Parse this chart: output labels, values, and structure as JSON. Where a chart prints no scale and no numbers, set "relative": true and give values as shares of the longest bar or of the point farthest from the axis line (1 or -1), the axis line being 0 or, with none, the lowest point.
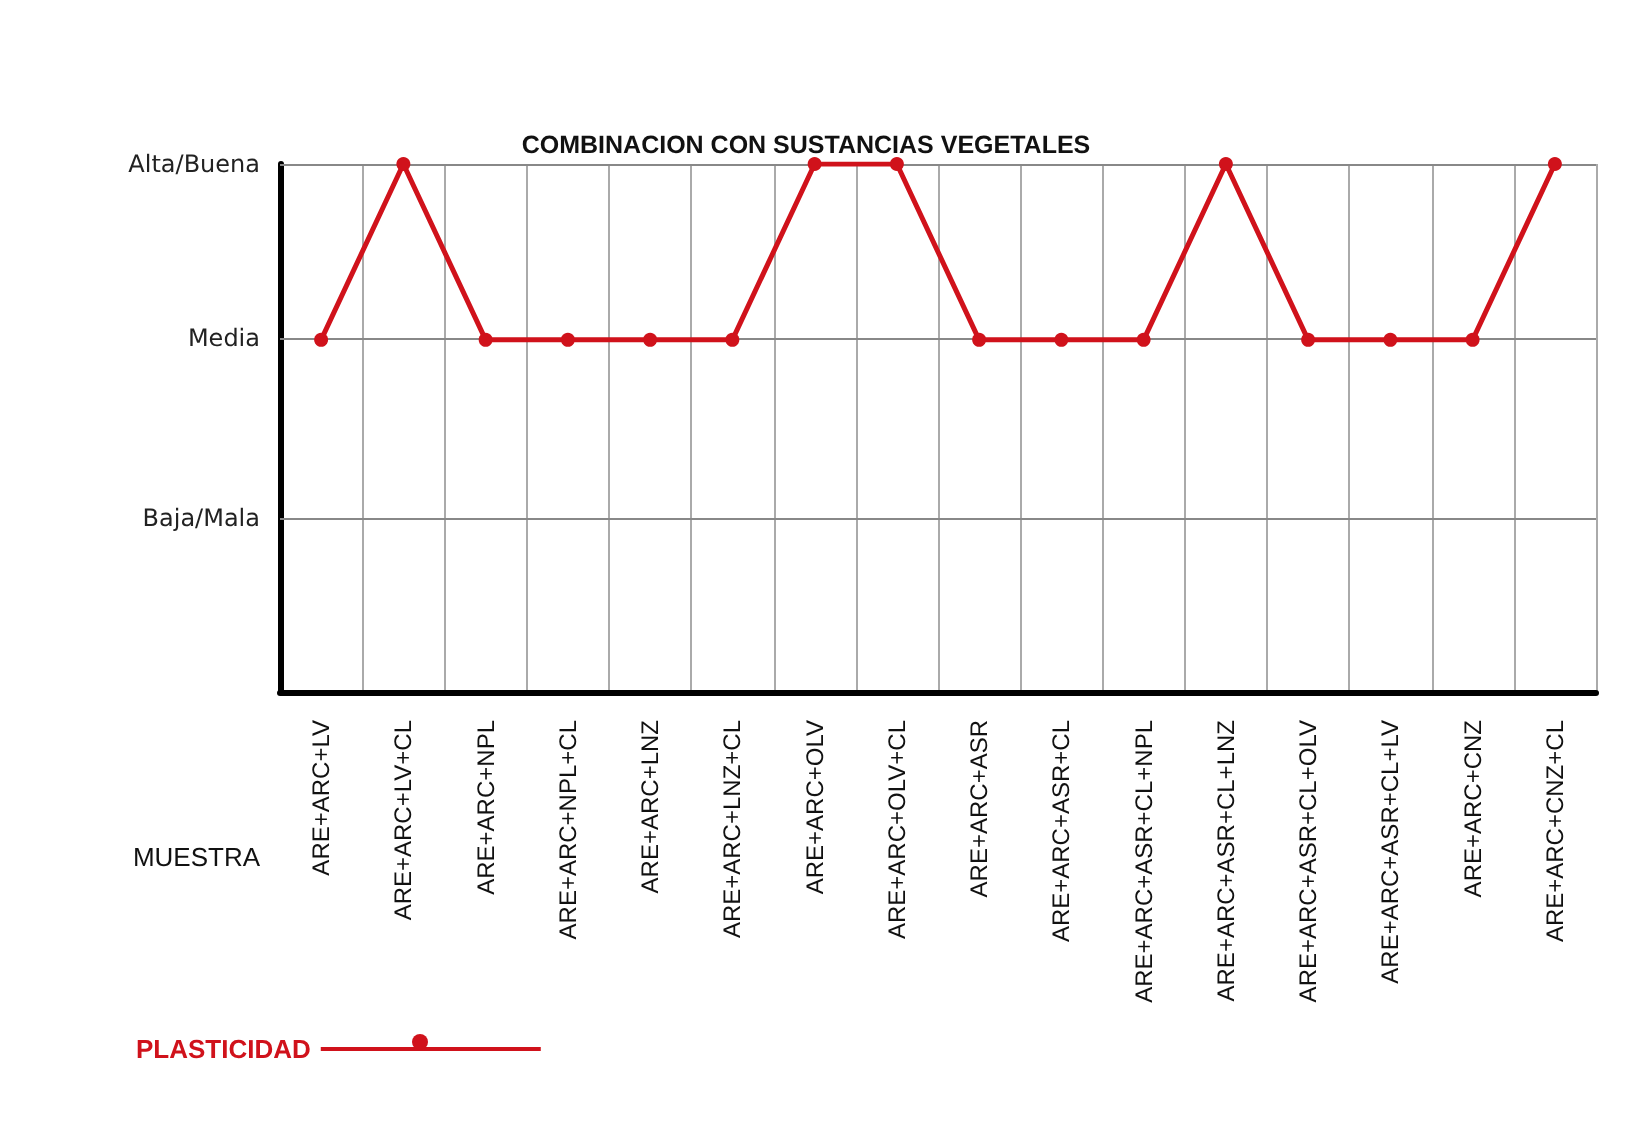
{
  "chart_data": {
    "type": "line",
    "title": "COMBINACION CON SUSTANCIAS VEGETALES",
    "xlabel": "MUESTRA",
    "categories": [
      "ARE+ARC+LV",
      "ARE+ARC+LV+CL",
      "ARE+ARC+NPL",
      "ARE+ARC+NPL+CL",
      "ARE+ARC+LNZ",
      "ARE+ARC+LNZ+CL",
      "ARE+ARC+OLV",
      "ARE+ARC+OLV+CL",
      "ARE+ARC+ASR",
      "ARE+ARC+ASR+CL",
      "ARE+ARC+ASR+CL+NPL",
      "ARE+ARC+ASR+CL+LNZ",
      "ARE+ARC+ASR+CL+OLV",
      "ARE+ARC+ASR+CL+LV",
      "ARE+ARC+CNZ",
      "ARE+ARC+CNZ+CL"
    ],
    "series": [
      {
        "name": "PLASTICIDAD",
        "color": "#d0121b",
        "values": [
          0.667,
          1,
          0.667,
          0.667,
          0.667,
          0.667,
          1,
          1,
          0.667,
          0.667,
          0.667,
          1,
          0.667,
          0.667,
          0.667,
          1
        ]
      }
    ],
    "relative": true,
    "ref_lines": [
      {
        "axis": "y",
        "value": 0.333,
        "label": "Baja/Mala"
      },
      {
        "axis": "y",
        "value": 0.667,
        "label": "Media"
      },
      {
        "axis": "y",
        "value": 1,
        "label": "Alta/Buena"
      }
    ],
    "grid": "x",
    "legend": "bottom left",
    "marker": "circle",
    "line_style": "solid"
  }
}
